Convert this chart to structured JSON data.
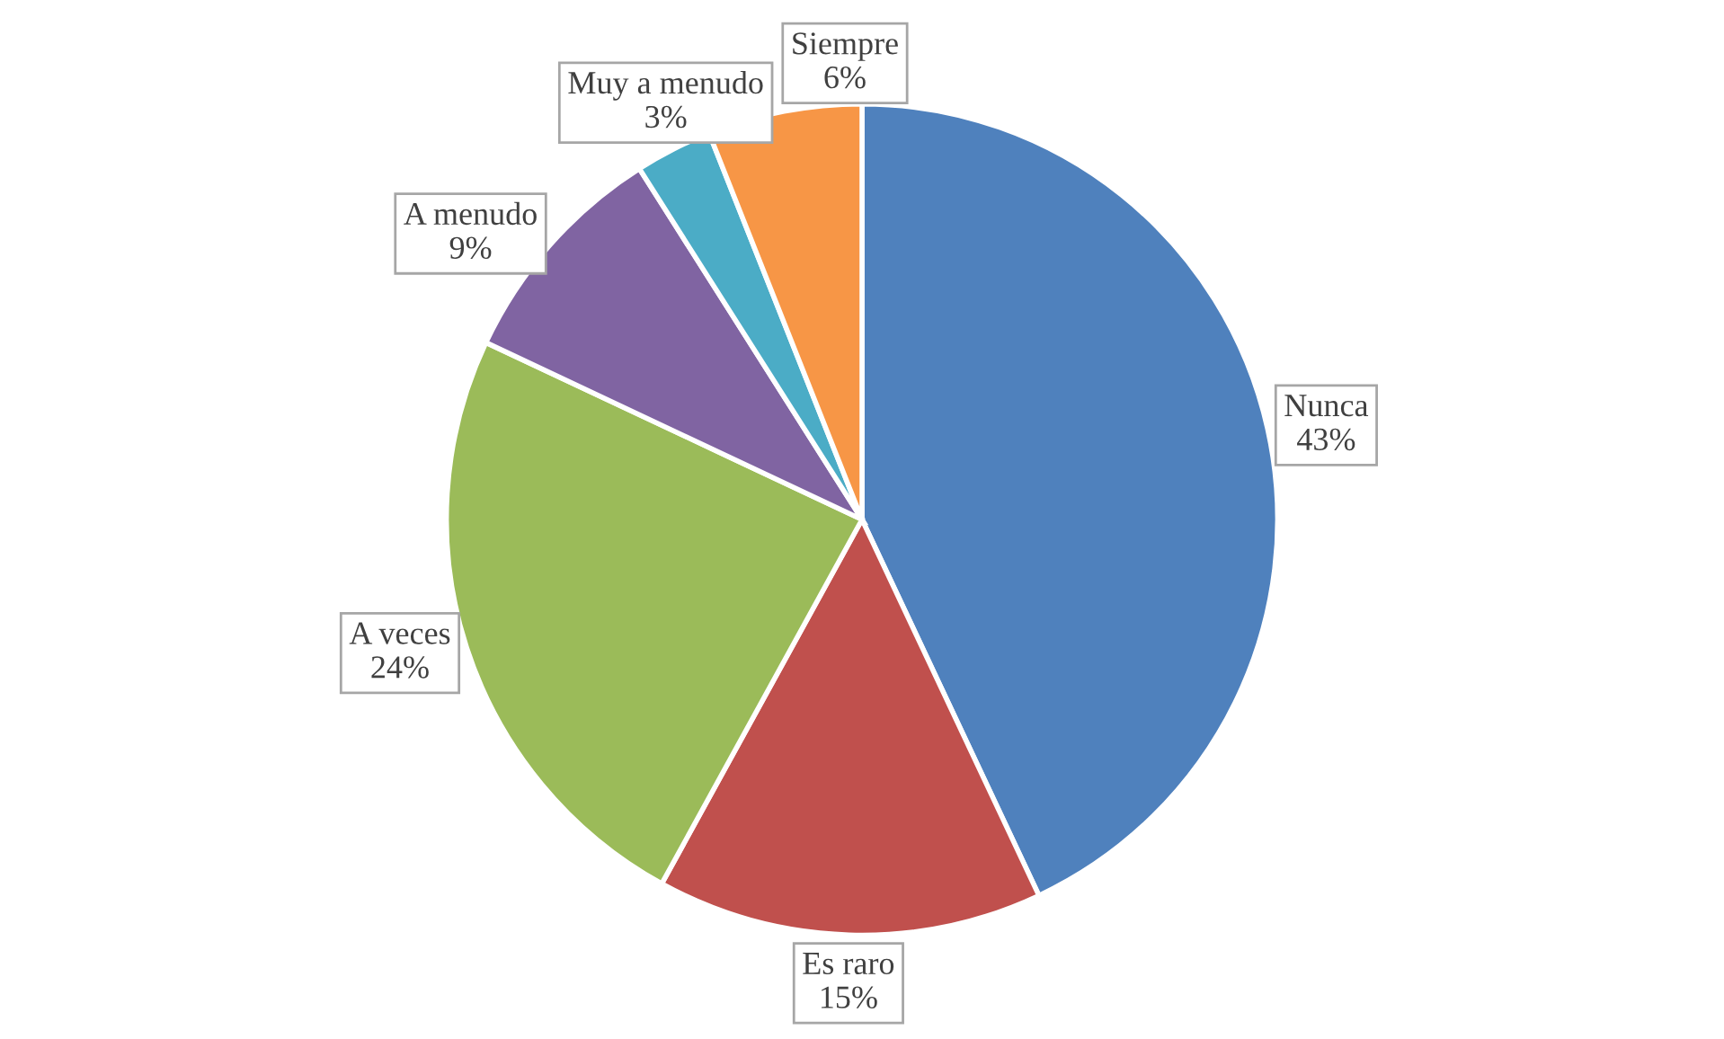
{
  "chart_data": {
    "type": "pie",
    "categories": [
      "Nunca",
      "Es raro",
      "A veces",
      "A menudo",
      "Muy a menudo",
      "Siempre"
    ],
    "values": [
      43,
      15,
      24,
      9,
      3,
      6
    ],
    "colors": [
      "#4f81bd",
      "#c0504d",
      "#9bbb59",
      "#8064a2",
      "#4bacc6",
      "#f79646"
    ],
    "value_labels": [
      "43%",
      "15%",
      "24%",
      "9%",
      "3%",
      "6%"
    ],
    "legend": false
  }
}
